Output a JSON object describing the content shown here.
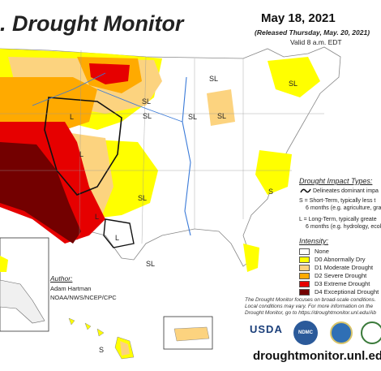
{
  "header": {
    "title": ". Drought Monitor",
    "date": "May 18, 2021",
    "released": "(Released Thursday, May. 20, 2021)",
    "valid": "Valid 8 a.m. EDT"
  },
  "impact": {
    "title": "Drought Impact Types:",
    "line1": "Delineates dominant impa",
    "line2": "S = Short-Term, typically less t",
    "line3": "6 months (e.g. agriculture, gras",
    "line4": "L = Long-Term, typically greate",
    "line5": "6 months (e.g. hydrology, ecolo"
  },
  "intensity": {
    "title": "Intensity:",
    "levels": [
      {
        "label": "None",
        "color": "#ffffff"
      },
      {
        "label": "D0 Abnormally Dry",
        "color": "#ffff00"
      },
      {
        "label": "D1 Moderate Drought",
        "color": "#fcd37f"
      },
      {
        "label": "D2 Severe Drought",
        "color": "#ffaa00"
      },
      {
        "label": "D3 Extreme Drought",
        "color": "#e60000"
      },
      {
        "label": "D4 Exceptional Drought",
        "color": "#730000"
      }
    ]
  },
  "author": {
    "heading": "Author:",
    "name": "Adam Hartman",
    "org": "NOAA/NWS/NCEP/CPC"
  },
  "note": {
    "line1": "The Drought Monitor focuses on broad-scale conditions.",
    "line2": "Local conditions may vary. For more information on the",
    "line3": "Drought Monitor, go to https://droughtmonitor.unl.edu/Ab"
  },
  "map_labels": {
    "sl": "SL",
    "l": "L",
    "s": "S"
  },
  "logos": {
    "usda": "USDA",
    "ndmc": "NDMC"
  },
  "url": "droughtmonitor.unl.edu"
}
